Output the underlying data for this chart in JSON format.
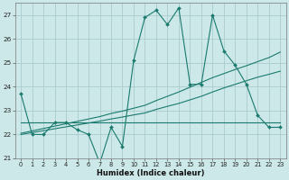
{
  "xlabel": "Humidex (Indice chaleur)",
  "xlim": [
    -0.5,
    23.5
  ],
  "ylim": [
    21,
    27.5
  ],
  "yticks": [
    21,
    22,
    23,
    24,
    25,
    26,
    27
  ],
  "xticks": [
    0,
    1,
    2,
    3,
    4,
    5,
    6,
    7,
    8,
    9,
    10,
    11,
    12,
    13,
    14,
    15,
    16,
    17,
    18,
    19,
    20,
    21,
    22,
    23
  ],
  "bg_color": "#cce8e8",
  "grid_color": "#aacccc",
  "line_color": "#1a7a6e",
  "series": {
    "main": [
      23.7,
      22.0,
      22.0,
      22.5,
      22.5,
      22.2,
      22.0,
      20.8,
      22.3,
      21.5,
      25.1,
      26.9,
      27.2,
      26.6,
      27.3,
      24.1,
      24.1,
      27.0,
      25.5,
      24.9,
      24.1,
      22.8,
      22.3,
      22.3
    ],
    "flat": [
      22.5,
      22.5,
      22.5,
      22.5,
      22.5,
      22.5,
      22.5,
      22.5,
      22.5,
      22.5,
      22.5,
      22.5,
      22.5,
      22.5,
      22.5,
      22.5,
      22.5,
      22.5,
      22.5,
      22.5,
      22.5,
      22.5,
      22.5,
      22.5
    ],
    "trend1": [
      22.05,
      22.15,
      22.25,
      22.35,
      22.45,
      22.55,
      22.65,
      22.75,
      22.88,
      22.98,
      23.1,
      23.22,
      23.42,
      23.6,
      23.78,
      23.98,
      24.18,
      24.38,
      24.55,
      24.72,
      24.88,
      25.05,
      25.22,
      25.45
    ],
    "trend2": [
      22.0,
      22.08,
      22.16,
      22.24,
      22.32,
      22.4,
      22.48,
      22.56,
      22.65,
      22.73,
      22.82,
      22.9,
      23.05,
      23.18,
      23.3,
      23.45,
      23.6,
      23.78,
      23.95,
      24.1,
      24.25,
      24.4,
      24.52,
      24.65
    ]
  }
}
